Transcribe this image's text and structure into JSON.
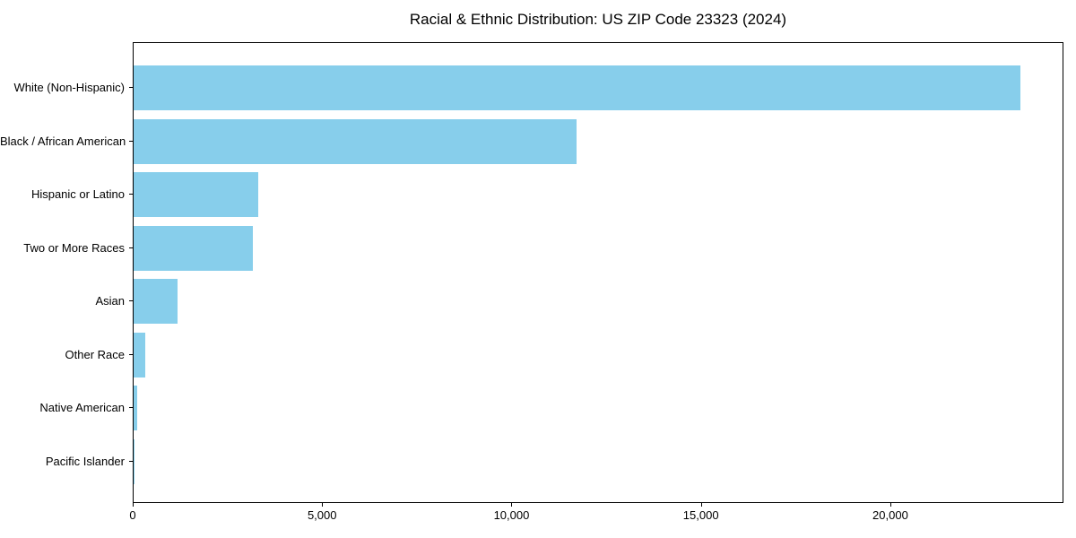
{
  "chart_data": {
    "type": "bar",
    "orientation": "horizontal",
    "title": "Racial & Ethnic Distribution: US ZIP Code 23323 (2024)",
    "categories": [
      "White (Non-Hispanic)",
      "Black / African American",
      "Hispanic or Latino",
      "Two or More Races",
      "Asian",
      "Other Race",
      "Native American",
      "Pacific Islander"
    ],
    "values": [
      23400,
      11700,
      3300,
      3160,
      1150,
      315,
      95,
      15
    ],
    "xlabel": "",
    "ylabel": "",
    "xlim": [
      0,
      24570
    ],
    "xticks": [
      0,
      5000,
      10000,
      15000,
      20000
    ],
    "xtick_labels": [
      "0",
      "5,000",
      "10,000",
      "15,000",
      "20,000"
    ],
    "bar_color": "#87CEEB",
    "plot_border_color": "#000000",
    "background_color": "#ffffff",
    "grid": false,
    "legend": null
  }
}
